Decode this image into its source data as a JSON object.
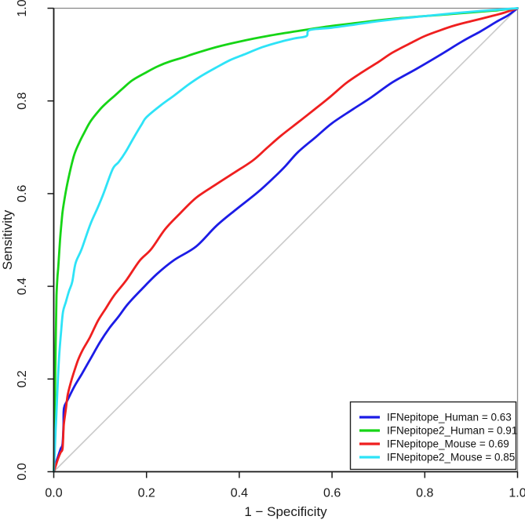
{
  "chart_data": {
    "type": "line",
    "title": "",
    "subtitle": "",
    "xlabel": "1 − Specificity",
    "ylabel": "Sensitivity",
    "xlim": [
      0,
      1
    ],
    "ylim": [
      0,
      1
    ],
    "grid": false,
    "legend_position": "bottom-right",
    "axis_color": "#1a1a1a",
    "box_color": "#8a8a8a",
    "x_ticks": [
      0,
      0.2,
      0.4,
      0.6,
      0.8,
      1.0
    ],
    "x_tick_labels": [
      "0.0",
      "0.2",
      "0.4",
      "0.6",
      "0.8",
      "1.0"
    ],
    "y_ticks": [
      0,
      0.2,
      0.4,
      0.6,
      0.8,
      1.0
    ],
    "y_tick_labels": [
      "0.0",
      "0.2",
      "0.4",
      "0.6",
      "0.8",
      "1.0"
    ],
    "diagonal": {
      "name": "chance-line",
      "color": "#c9c9c9",
      "points": [
        [
          0,
          0
        ],
        [
          1,
          1
        ]
      ]
    },
    "series": [
      {
        "name": "IFNepitope_Human",
        "auc": 0.63,
        "legend_label": "IFNepitope_Human = 0.63",
        "color": "#1c1ce6",
        "points": [
          [
            0,
            0
          ],
          [
            0.005,
            0.02
          ],
          [
            0.01,
            0.035
          ],
          [
            0.015,
            0.05
          ],
          [
            0.019,
            0.06
          ],
          [
            0.021,
            0.1
          ],
          [
            0.022,
            0.137
          ],
          [
            0.03,
            0.155
          ],
          [
            0.045,
            0.185
          ],
          [
            0.06,
            0.21
          ],
          [
            0.08,
            0.245
          ],
          [
            0.1,
            0.28
          ],
          [
            0.12,
            0.31
          ],
          [
            0.14,
            0.335
          ],
          [
            0.16,
            0.362
          ],
          [
            0.19,
            0.394
          ],
          [
            0.223,
            0.427
          ],
          [
            0.26,
            0.457
          ],
          [
            0.307,
            0.486
          ],
          [
            0.35,
            0.53
          ],
          [
            0.392,
            0.565
          ],
          [
            0.44,
            0.603
          ],
          [
            0.476,
            0.636
          ],
          [
            0.5,
            0.66
          ],
          [
            0.527,
            0.69
          ],
          [
            0.565,
            0.722
          ],
          [
            0.6,
            0.752
          ],
          [
            0.645,
            0.782
          ],
          [
            0.685,
            0.808
          ],
          [
            0.73,
            0.84
          ],
          [
            0.78,
            0.868
          ],
          [
            0.831,
            0.898
          ],
          [
            0.88,
            0.928
          ],
          [
            0.92,
            0.95
          ],
          [
            0.955,
            0.971
          ],
          [
            0.98,
            0.985
          ],
          [
            1,
            1
          ]
        ]
      },
      {
        "name": "IFNepitope2_Human",
        "auc": 0.91,
        "legend_label": "IFNepitope2_Human = 0.91",
        "color": "#16d516",
        "points": [
          [
            0,
            0
          ],
          [
            0.001,
            0.05
          ],
          [
            0.002,
            0.12
          ],
          [
            0.003,
            0.2
          ],
          [
            0.004,
            0.27
          ],
          [
            0.005,
            0.33
          ],
          [
            0.006,
            0.38
          ],
          [
            0.008,
            0.42
          ],
          [
            0.01,
            0.445
          ],
          [
            0.0135,
            0.5
          ],
          [
            0.017,
            0.54
          ],
          [
            0.02,
            0.568
          ],
          [
            0.029,
            0.62
          ],
          [
            0.043,
            0.68
          ],
          [
            0.055,
            0.71
          ],
          [
            0.065,
            0.73
          ],
          [
            0.08,
            0.757
          ],
          [
            0.1,
            0.782
          ],
          [
            0.115,
            0.797
          ],
          [
            0.13,
            0.81
          ],
          [
            0.15,
            0.828
          ],
          [
            0.17,
            0.845
          ],
          [
            0.2,
            0.862
          ],
          [
            0.225,
            0.875
          ],
          [
            0.25,
            0.885
          ],
          [
            0.28,
            0.894
          ],
          [
            0.3,
            0.901
          ],
          [
            0.35,
            0.916
          ],
          [
            0.4,
            0.928
          ],
          [
            0.46,
            0.94
          ],
          [
            0.527,
            0.951
          ],
          [
            0.6,
            0.962
          ],
          [
            0.66,
            0.969
          ],
          [
            0.7,
            0.974
          ],
          [
            0.75,
            0.979
          ],
          [
            0.8,
            0.983
          ],
          [
            0.85,
            0.987
          ],
          [
            0.9,
            0.991
          ],
          [
            0.95,
            0.995
          ],
          [
            1,
            1
          ]
        ]
      },
      {
        "name": "IFNepitope_Mouse",
        "auc": 0.69,
        "legend_label": "IFNepitope_Mouse = 0.69",
        "color": "#ef1f1f",
        "points": [
          [
            0,
            0
          ],
          [
            0.005,
            0.015
          ],
          [
            0.01,
            0.03
          ],
          [
            0.015,
            0.042
          ],
          [
            0.019,
            0.05
          ],
          [
            0.021,
            0.09
          ],
          [
            0.022,
            0.105
          ],
          [
            0.026,
            0.135
          ],
          [
            0.03,
            0.165
          ],
          [
            0.036,
            0.19
          ],
          [
            0.042,
            0.21
          ],
          [
            0.052,
            0.24
          ],
          [
            0.062,
            0.262
          ],
          [
            0.078,
            0.29
          ],
          [
            0.095,
            0.325
          ],
          [
            0.112,
            0.352
          ],
          [
            0.13,
            0.38
          ],
          [
            0.157,
            0.414
          ],
          [
            0.185,
            0.455
          ],
          [
            0.21,
            0.48
          ],
          [
            0.24,
            0.523
          ],
          [
            0.27,
            0.555
          ],
          [
            0.307,
            0.591
          ],
          [
            0.35,
            0.62
          ],
          [
            0.392,
            0.647
          ],
          [
            0.43,
            0.672
          ],
          [
            0.459,
            0.698
          ],
          [
            0.49,
            0.725
          ],
          [
            0.527,
            0.754
          ],
          [
            0.56,
            0.78
          ],
          [
            0.595,
            0.808
          ],
          [
            0.63,
            0.838
          ],
          [
            0.665,
            0.862
          ],
          [
            0.7,
            0.884
          ],
          [
            0.73,
            0.904
          ],
          [
            0.77,
            0.925
          ],
          [
            0.8,
            0.94
          ],
          [
            0.832,
            0.952
          ],
          [
            0.865,
            0.963
          ],
          [
            0.9,
            0.972
          ],
          [
            0.944,
            0.983
          ],
          [
            0.97,
            0.99
          ],
          [
            1,
            1
          ]
        ]
      },
      {
        "name": "IFNepitope2_Mouse",
        "auc": 0.85,
        "legend_label": "IFNepitope2_Mouse = 0.85",
        "color": "#2ee3f7",
        "points": [
          [
            0,
            0
          ],
          [
            0.002,
            0.04
          ],
          [
            0.004,
            0.09
          ],
          [
            0.006,
            0.13
          ],
          [
            0.009,
            0.2
          ],
          [
            0.012,
            0.255
          ],
          [
            0.016,
            0.305
          ],
          [
            0.02,
            0.345
          ],
          [
            0.026,
            0.366
          ],
          [
            0.033,
            0.39
          ],
          [
            0.04,
            0.41
          ],
          [
            0.047,
            0.45
          ],
          [
            0.06,
            0.48
          ],
          [
            0.079,
            0.534
          ],
          [
            0.095,
            0.57
          ],
          [
            0.108,
            0.602
          ],
          [
            0.127,
            0.653
          ],
          [
            0.14,
            0.668
          ],
          [
            0.155,
            0.69
          ],
          [
            0.172,
            0.72
          ],
          [
            0.19,
            0.75
          ],
          [
            0.2,
            0.765
          ],
          [
            0.23,
            0.79
          ],
          [
            0.26,
            0.812
          ],
          [
            0.29,
            0.835
          ],
          [
            0.32,
            0.855
          ],
          [
            0.35,
            0.872
          ],
          [
            0.38,
            0.888
          ],
          [
            0.41,
            0.9
          ],
          [
            0.45,
            0.916
          ],
          [
            0.49,
            0.928
          ],
          [
            0.52,
            0.935
          ],
          [
            0.545,
            0.94
          ],
          [
            0.552,
            0.953
          ],
          [
            0.6,
            0.958
          ],
          [
            0.65,
            0.965
          ],
          [
            0.7,
            0.972
          ],
          [
            0.75,
            0.978
          ],
          [
            0.8,
            0.983
          ],
          [
            0.86,
            0.989
          ],
          [
            0.92,
            0.994
          ],
          [
            1,
            1
          ]
        ]
      }
    ]
  }
}
